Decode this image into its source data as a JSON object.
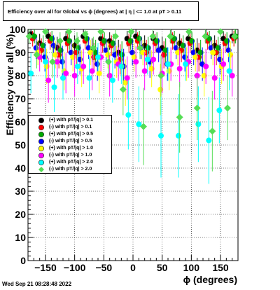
{
  "header": {
    "title": "Efficiency over all for Global vs ϕ (degrees) at | η | <= 1.0 at pT > 0.11"
  },
  "footer": {
    "timestamp": "Wed Sep 21 08:28:48 2022"
  },
  "chart_data": {
    "type": "scatter",
    "title": "Efficiency over all for Global vs ϕ (degrees) at | η | <= 1.0 at pT > 0.11",
    "xlabel": "ϕ (degrees)",
    "ylabel": "Efficiency over all (%)",
    "xlim": [
      -180,
      180
    ],
    "ylim": [
      0,
      100
    ],
    "x_ticks": [
      -150,
      -100,
      -50,
      0,
      50,
      100,
      150
    ],
    "x_tick_labels": [
      "−150",
      "−100",
      "−50",
      "0",
      "50",
      "100",
      "150"
    ],
    "y_ticks": [
      0,
      10,
      20,
      30,
      40,
      50,
      60,
      70,
      80,
      90,
      100
    ],
    "y_tick_labels": [
      "0",
      "10",
      "20",
      "30",
      "40",
      "50",
      "60",
      "70",
      "80",
      "90",
      "100"
    ],
    "grid": true,
    "legend_position": "middle-left",
    "series": [
      {
        "name": "(+) with pT/|q| > 0.1",
        "color": "#000000",
        "marker": "circle",
        "x": [
          -175,
          -160,
          -145,
          -130,
          -115,
          -100,
          -85,
          -70,
          -55,
          -40,
          -25,
          -10,
          5,
          20,
          35,
          50,
          65,
          80,
          95,
          110,
          125,
          140,
          155,
          170
        ],
        "y": [
          98,
          94,
          97,
          92,
          96,
          93,
          97,
          91,
          96,
          95,
          90,
          96,
          97,
          93,
          96,
          92,
          97,
          94,
          96,
          91,
          97,
          93,
          96,
          97
        ]
      },
      {
        "name": "(-) with pT/|q| > 0.1",
        "color": "#ff0000",
        "marker": "circle",
        "x": [
          -172,
          -157,
          -142,
          -127,
          -112,
          -97,
          -82,
          -67,
          -52,
          -37,
          -22,
          -7,
          8,
          23,
          38,
          53,
          68,
          83,
          98,
          113,
          128,
          143,
          158,
          173
        ],
        "y": [
          96,
          91,
          95,
          89,
          94,
          90,
          95,
          88,
          94,
          93,
          87,
          94,
          95,
          90,
          94,
          89,
          95,
          91,
          94,
          88,
          95,
          90,
          94,
          96
        ]
      },
      {
        "name": "(+) with pT/|q| > 0.5",
        "color": "#00aa00",
        "marker": "circle",
        "x": [
          -169,
          -154,
          -139,
          -124,
          -109,
          -94,
          -79,
          -64,
          -49,
          -34,
          -19,
          -4,
          11,
          26,
          41,
          56,
          71,
          86,
          101,
          116,
          131,
          146,
          161,
          176
        ],
        "y": [
          97,
          93,
          96,
          91,
          95,
          92,
          96,
          90,
          95,
          94,
          89,
          95,
          96,
          92,
          95,
          91,
          96,
          93,
          95,
          90,
          96,
          92,
          95,
          97
        ]
      },
      {
        "name": "(-) with pT/|q| > 0.5",
        "color": "#0000ff",
        "marker": "circle",
        "x": [
          -166,
          -151,
          -136,
          -121,
          -106,
          -91,
          -76,
          -61,
          -46,
          -31,
          -16,
          -1,
          14,
          29,
          44,
          59,
          74,
          89,
          104,
          119,
          134,
          149,
          164
        ],
        "y": [
          92,
          88,
          93,
          86,
          90,
          87,
          92,
          85,
          91,
          89,
          84,
          90,
          92,
          86,
          91,
          85,
          92,
          88,
          90,
          85,
          92,
          87,
          91
        ]
      },
      {
        "name": "(+) with pT/|q| > 1.0",
        "color": "#ffff00",
        "marker": "circle",
        "x": [
          -163,
          -148,
          -133,
          -118,
          -103,
          -88,
          -73,
          -58,
          -43,
          -28,
          -13,
          2,
          17,
          32,
          47,
          62,
          77,
          92,
          107,
          122,
          137,
          152,
          167
        ],
        "y": [
          90,
          84,
          89,
          82,
          88,
          83,
          90,
          81,
          89,
          86,
          77,
          88,
          90,
          83,
          74,
          82,
          90,
          85,
          88,
          80,
          90,
          84,
          89
        ]
      },
      {
        "name": "(-) with pT/|q| > 1.0",
        "color": "#ff00ff",
        "marker": "circle",
        "x": [
          -160,
          -145,
          -130,
          -115,
          -100,
          -85,
          -70,
          -55,
          -40,
          -25,
          -10,
          5,
          20,
          35,
          50,
          65,
          80,
          95,
          110,
          125,
          140,
          155,
          170
        ],
        "y": [
          88,
          78,
          86,
          81,
          80,
          84,
          82,
          88,
          80,
          85,
          79,
          86,
          82,
          87,
          81,
          85,
          83,
          86,
          80,
          84,
          79,
          85,
          80
        ]
      },
      {
        "name": "(+) with pT/|q| > 2.0",
        "color": "#00ffff",
        "marker": "circle",
        "x": [
          -175,
          -150,
          -135,
          -120,
          -95,
          -75,
          -60,
          -35,
          -20,
          -8,
          10,
          25,
          48,
          60,
          78,
          90,
          112,
          130,
          148,
          165
        ],
        "y": [
          81,
          86,
          75,
          79,
          84,
          79,
          88,
          78,
          84,
          63,
          59,
          87,
          54,
          85,
          54,
          85,
          59,
          52,
          65,
          82
        ]
      },
      {
        "name": "(-) with pT/|q| > 2.0",
        "color": "#55dd55",
        "marker": "diamond",
        "x": [
          -178,
          -165,
          -150,
          -138,
          -125,
          -110,
          -96,
          -82,
          -68,
          -55,
          -42,
          -30,
          -17,
          -3,
          12,
          18,
          34,
          48,
          64,
          80,
          96,
          110,
          124,
          136,
          150,
          162,
          174
        ],
        "y": [
          97,
          89,
          99,
          86,
          95,
          99,
          95,
          98,
          92,
          99,
          86,
          97,
          74,
          99,
          92,
          58,
          97,
          80,
          97,
          62,
          99,
          66,
          97,
          56,
          99,
          66,
          97
        ]
      }
    ]
  },
  "legend": {
    "items": [
      {
        "label": "(+) with pT/|q| > 0.1",
        "color": "#000000",
        "shape": "circle"
      },
      {
        "label": "(-) with pT/|q| > 0.1",
        "color": "#ff0000",
        "shape": "circle"
      },
      {
        "label": "(+) with pT/|q| > 0.5",
        "color": "#00aa00",
        "shape": "circle"
      },
      {
        "label": "(-) with pT/|q| > 0.5",
        "color": "#0000ff",
        "shape": "circle"
      },
      {
        "label": "(+) with pT/|q| > 1.0",
        "color": "#ffff00",
        "shape": "circle"
      },
      {
        "label": "(-) with pT/|q| > 1.0",
        "color": "#ff00ff",
        "shape": "circle"
      },
      {
        "label": "(+) with pT/|q| > 2.0",
        "color": "#00ffff",
        "shape": "circle"
      },
      {
        "label": "(-) with pT/|q| > 2.0",
        "color": "#55dd55",
        "shape": "diamond"
      }
    ]
  }
}
